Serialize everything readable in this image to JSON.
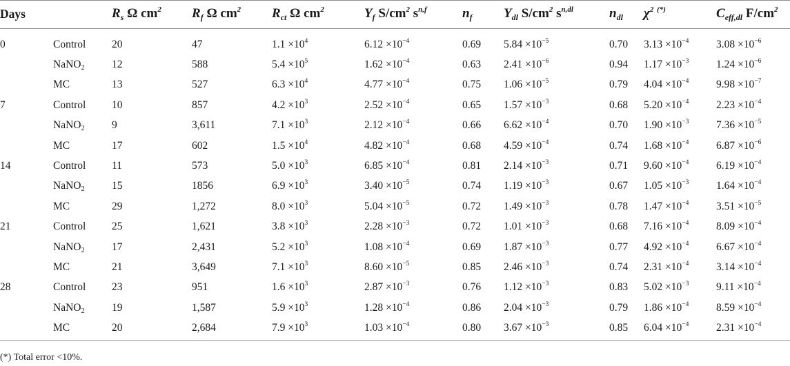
{
  "table": {
    "headers": {
      "days": "Days",
      "rs_sym": "R",
      "rs_sub": "s",
      "rs_unit": " Ω cm",
      "rs_unit_sup": "2",
      "rf_sym": "R",
      "rf_sub": "f",
      "rf_unit": " Ω cm",
      "rf_unit_sup": "2",
      "rct_sym": "R",
      "rct_sub": "ct",
      "rct_unit": " Ω cm",
      "rct_unit_sup": "2",
      "yf_sym": "Y",
      "yf_sub": "f",
      "yf_unit": " S/cm",
      "yf_unit_sup": "2",
      "yf_unit2": " s",
      "yf_unit2_sup": "n,f",
      "nf_sym": "n",
      "nf_sub": "f",
      "ydl_sym": "Y",
      "ydl_sub": "dl",
      "ydl_unit": " S/cm",
      "ydl_unit_sup": "2",
      "ydl_unit2": " s",
      "ydl_unit2_sup": "n,dl",
      "ndl_sym": "n",
      "ndl_sub": "dl",
      "chi_sym": "χ",
      "chi_sup": "2",
      "chi_note": "(*)",
      "ceff_sym": "C",
      "ceff_sub": "eff,dl",
      "ceff_unit": " F/cm",
      "ceff_unit_sup": "2"
    },
    "rows": [
      {
        "day": "0",
        "sample": "Control",
        "sample_sub": "",
        "rs": "20",
        "rf": "47",
        "rct": [
          "1.1",
          "4"
        ],
        "yf": [
          "6.12",
          "−4"
        ],
        "nf": "0.69",
        "ydl": [
          "5.84",
          "−5"
        ],
        "ndl": "0.70",
        "chi": [
          "3.13",
          "−4"
        ],
        "ceff": [
          "3.08",
          "−6"
        ]
      },
      {
        "day": "",
        "sample": "NaNO",
        "sample_sub": "2",
        "rs": "12",
        "rf": "588",
        "rct": [
          "5.4",
          "5"
        ],
        "yf": [
          "1.62",
          "−4"
        ],
        "nf": "0.63",
        "ydl": [
          "2.41",
          "−6"
        ],
        "ndl": "0.94",
        "chi": [
          "1.17",
          "−3"
        ],
        "ceff": [
          "1.24",
          "−6"
        ]
      },
      {
        "day": "",
        "sample": "MC",
        "sample_sub": "",
        "rs": "13",
        "rf": "527",
        "rct": [
          "6.3",
          "4"
        ],
        "yf": [
          "4.77",
          "−4"
        ],
        "nf": "0.75",
        "ydl": [
          "1.06",
          "−5"
        ],
        "ndl": "0.79",
        "chi": [
          "4.04",
          "−4"
        ],
        "ceff": [
          "9.98",
          "−7"
        ]
      },
      {
        "day": "7",
        "sample": "Control",
        "sample_sub": "",
        "rs": "10",
        "rf": "857",
        "rct": [
          "4.2",
          "3"
        ],
        "yf": [
          "2.52",
          "−4"
        ],
        "nf": "0.65",
        "ydl": [
          "1.57",
          "−3"
        ],
        "ndl": "0.68",
        "chi": [
          "5.20",
          "−4"
        ],
        "ceff": [
          "2.23",
          "−4"
        ]
      },
      {
        "day": "",
        "sample": "NaNO",
        "sample_sub": "2",
        "rs": "9",
        "rf": "3,611",
        "rct": [
          "7.1",
          "3"
        ],
        "yf": [
          "2.12",
          "−4"
        ],
        "nf": "0.66",
        "ydl": [
          "6.62",
          "−4"
        ],
        "ndl": "0.70",
        "chi": [
          "1.90",
          "−3"
        ],
        "ceff": [
          "7.36",
          "−5"
        ]
      },
      {
        "day": "",
        "sample": "MC",
        "sample_sub": "",
        "rs": "17",
        "rf": "602",
        "rct": [
          "1.5",
          "4"
        ],
        "yf": [
          "4.82",
          "−4"
        ],
        "nf": "0.68",
        "ydl": [
          "4.59",
          "−4"
        ],
        "ndl": "0.74",
        "chi": [
          "1.68",
          "−4"
        ],
        "ceff": [
          "6.87",
          "−6"
        ]
      },
      {
        "day": "14",
        "sample": "Control",
        "sample_sub": "",
        "rs": "11",
        "rf": "573",
        "rct": [
          "5.0",
          "3"
        ],
        "yf": [
          "6.85",
          "−4"
        ],
        "nf": "0.81",
        "ydl": [
          "2.14",
          "−3"
        ],
        "ndl": "0.71",
        "chi": [
          "9.60",
          "−4"
        ],
        "ceff": [
          "6.19",
          "−4"
        ]
      },
      {
        "day": "",
        "sample": "NaNO",
        "sample_sub": "2",
        "rs": "15",
        "rf": "1856",
        "rct": [
          "6.9",
          "3"
        ],
        "yf": [
          "3.40",
          "−5"
        ],
        "nf": "0.74",
        "ydl": [
          "1.19",
          "−3"
        ],
        "ndl": "0.67",
        "chi": [
          "1.05",
          "−3"
        ],
        "ceff": [
          "1.64",
          "−4"
        ]
      },
      {
        "day": "",
        "sample": "MC",
        "sample_sub": "",
        "rs": "29",
        "rf": "1,272",
        "rct": [
          "8.0",
          "3"
        ],
        "yf": [
          "5.04",
          "−5"
        ],
        "nf": "0.72",
        "ydl": [
          "1.49",
          "−3"
        ],
        "ndl": "0.78",
        "chi": [
          "1.47",
          "−4"
        ],
        "ceff": [
          "3.51",
          "−5"
        ]
      },
      {
        "day": "21",
        "sample": "Control",
        "sample_sub": "",
        "rs": "25",
        "rf": "1,621",
        "rct": [
          "3.8",
          "3"
        ],
        "yf": [
          "2.28",
          "−3"
        ],
        "nf": "0.72",
        "ydl": [
          "1.01",
          "−3"
        ],
        "ndl": "0.68",
        "chi": [
          "7.16",
          "−4"
        ],
        "ceff": [
          "8.09",
          "−4"
        ]
      },
      {
        "day": "",
        "sample": "NaNO",
        "sample_sub": "2",
        "rs": "17",
        "rf": "2,431",
        "rct": [
          "5.2",
          "3"
        ],
        "yf": [
          "1.08",
          "−4"
        ],
        "nf": "0.69",
        "ydl": [
          "1.87",
          "−3"
        ],
        "ndl": "0.77",
        "chi": [
          "4.92",
          "−4"
        ],
        "ceff": [
          "6.67",
          "−4"
        ]
      },
      {
        "day": "",
        "sample": "MC",
        "sample_sub": "",
        "rs": "21",
        "rf": "3,649",
        "rct": [
          "7.1",
          "3"
        ],
        "yf": [
          "8.60",
          "−5"
        ],
        "nf": "0.85",
        "ydl": [
          "2.46",
          "−3"
        ],
        "ndl": "0.74",
        "chi": [
          "2.31",
          "−4"
        ],
        "ceff": [
          "3.14",
          "−4"
        ]
      },
      {
        "day": "28",
        "sample": "Control",
        "sample_sub": "",
        "rs": "23",
        "rf": "951",
        "rct": [
          "1.6",
          "3"
        ],
        "yf": [
          "2.87",
          "−3"
        ],
        "nf": "0.76",
        "ydl": [
          "1.12",
          "−3"
        ],
        "ndl": "0.83",
        "chi": [
          "5.02",
          "−3"
        ],
        "ceff": [
          "9.11",
          "−4"
        ]
      },
      {
        "day": "",
        "sample": "NaNO",
        "sample_sub": "2",
        "rs": "19",
        "rf": "1,587",
        "rct": [
          "5.9",
          "3"
        ],
        "yf": [
          "1.28",
          "−4"
        ],
        "nf": "0.86",
        "ydl": [
          "2.04",
          "−3"
        ],
        "ndl": "0.79",
        "chi": [
          "1.86",
          "−4"
        ],
        "ceff": [
          "8.59",
          "−4"
        ]
      },
      {
        "day": "",
        "sample": "MC",
        "sample_sub": "",
        "rs": "20",
        "rf": "2,684",
        "rct": [
          "7.9",
          "3"
        ],
        "yf": [
          "1.03",
          "−4"
        ],
        "nf": "0.80",
        "ydl": [
          "3.67",
          "−3"
        ],
        "ndl": "0.85",
        "chi": [
          "6.04",
          "−4"
        ],
        "ceff": [
          "2.31",
          "−4"
        ]
      }
    ],
    "times_sign": "×10",
    "footnote": "(*) Total error <10%."
  }
}
